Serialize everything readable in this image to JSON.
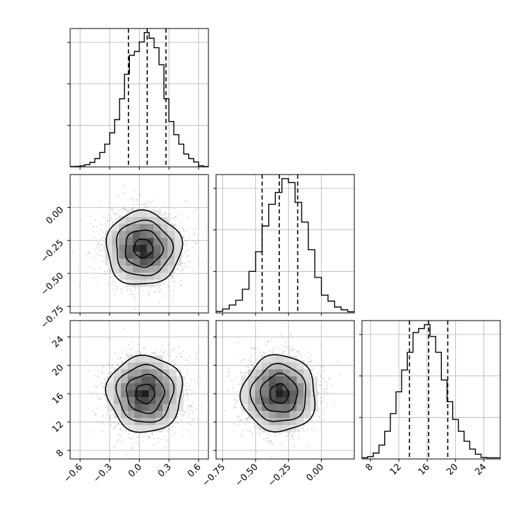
{
  "chart_data": {
    "type": "corner",
    "parameters": [
      {
        "key": "p0",
        "range": [
          -0.7,
          0.7
        ],
        "ticks": [
          -0.6,
          -0.3,
          0.0,
          0.3,
          0.6
        ],
        "tick_labels": [
          "−0.6",
          "−0.3",
          "0.0",
          "0.3",
          "0.6"
        ]
      },
      {
        "key": "p1",
        "range": [
          -0.8,
          0.25
        ],
        "ticks": [
          -0.75,
          -0.5,
          -0.25,
          0.0
        ],
        "tick_labels": [
          "−0.75",
          "−0.50",
          "−0.25",
          "0.00"
        ]
      },
      {
        "key": "p2",
        "range": [
          6.8,
          26.3
        ],
        "ticks": [
          8,
          12,
          16,
          20,
          24
        ],
        "tick_labels": [
          "8",
          "12",
          "16",
          "20",
          "24"
        ]
      }
    ],
    "marginals": [
      {
        "quantiles": [
          -0.11,
          0.08,
          0.27
        ],
        "bins_x": [
          -0.7,
          -0.65,
          -0.6,
          -0.55,
          -0.5,
          -0.45,
          -0.4,
          -0.35,
          -0.3,
          -0.25,
          -0.2,
          -0.15,
          -0.1,
          -0.05,
          0.0,
          0.05,
          0.1,
          0.15,
          0.2,
          0.25,
          0.3,
          0.35,
          0.4,
          0.45,
          0.5,
          0.55,
          0.6,
          0.65,
          0.7
        ],
        "counts": [
          0.1,
          0.15,
          0.3,
          0.6,
          1.2,
          2.2,
          3.8,
          6.0,
          9.0,
          12.5,
          18,
          24.5,
          29.5,
          30.5,
          33,
          35.5,
          34,
          31.5,
          27,
          18,
          12,
          8.5,
          6.0,
          3.4,
          2.2,
          1.3,
          0.3,
          0.1
        ]
      },
      {
        "quantiles": [
          -0.45,
          -0.32,
          -0.18
        ],
        "bins_x": [
          -0.8,
          -0.75,
          -0.7,
          -0.65,
          -0.6,
          -0.55,
          -0.5,
          -0.45,
          -0.4,
          -0.35,
          -0.3,
          -0.25,
          -0.2,
          -0.15,
          -0.1,
          -0.05,
          0.0,
          0.05,
          0.1,
          0.15,
          0.2,
          0.25
        ],
        "counts": [
          0.4,
          1.0,
          2.0,
          3.2,
          6.0,
          10.5,
          15.5,
          22,
          27.5,
          30.5,
          34,
          33,
          28,
          23,
          16,
          9.0,
          4.5,
          3.0,
          1.5,
          0.8,
          0.3
        ]
      },
      {
        "quantiles": [
          13.5,
          16.2,
          18.9
        ],
        "bins_x": [
          6.8,
          7.6,
          8.4,
          9.2,
          10.0,
          10.8,
          11.6,
          12.4,
          13.2,
          14.0,
          14.8,
          15.6,
          16.4,
          17.2,
          18.0,
          18.8,
          19.6,
          20.4,
          21.2,
          22.0,
          22.8,
          23.6,
          24.4,
          25.2,
          26.3
        ],
        "counts": [
          0.3,
          0.6,
          1.5,
          3.5,
          7.0,
          11.5,
          17,
          22.5,
          27,
          32,
          33,
          34,
          31,
          27,
          20,
          14.5,
          10,
          7.0,
          4.5,
          2.5,
          1.2,
          0.4,
          0.3,
          0.3
        ]
      }
    ],
    "joint": [
      {
        "x": "p0",
        "y": "p1",
        "mean": [
          0.04,
          -0.31
        ],
        "sd": [
          0.19,
          0.14
        ]
      },
      {
        "x": "p0",
        "y": "p2",
        "mean": [
          0.06,
          16.0
        ],
        "sd": [
          0.19,
          2.7
        ]
      },
      {
        "x": "p1",
        "y": "p2",
        "mean": [
          -0.32,
          16.0
        ],
        "sd": [
          0.14,
          2.7
        ]
      }
    ],
    "contour_levels_sigma": [
      0.5,
      1.0,
      1.5,
      2.0
    ],
    "grid": true,
    "colors": {
      "line": "#000000",
      "grid": "#b0b0b0",
      "points": "#9a9a9a"
    }
  }
}
